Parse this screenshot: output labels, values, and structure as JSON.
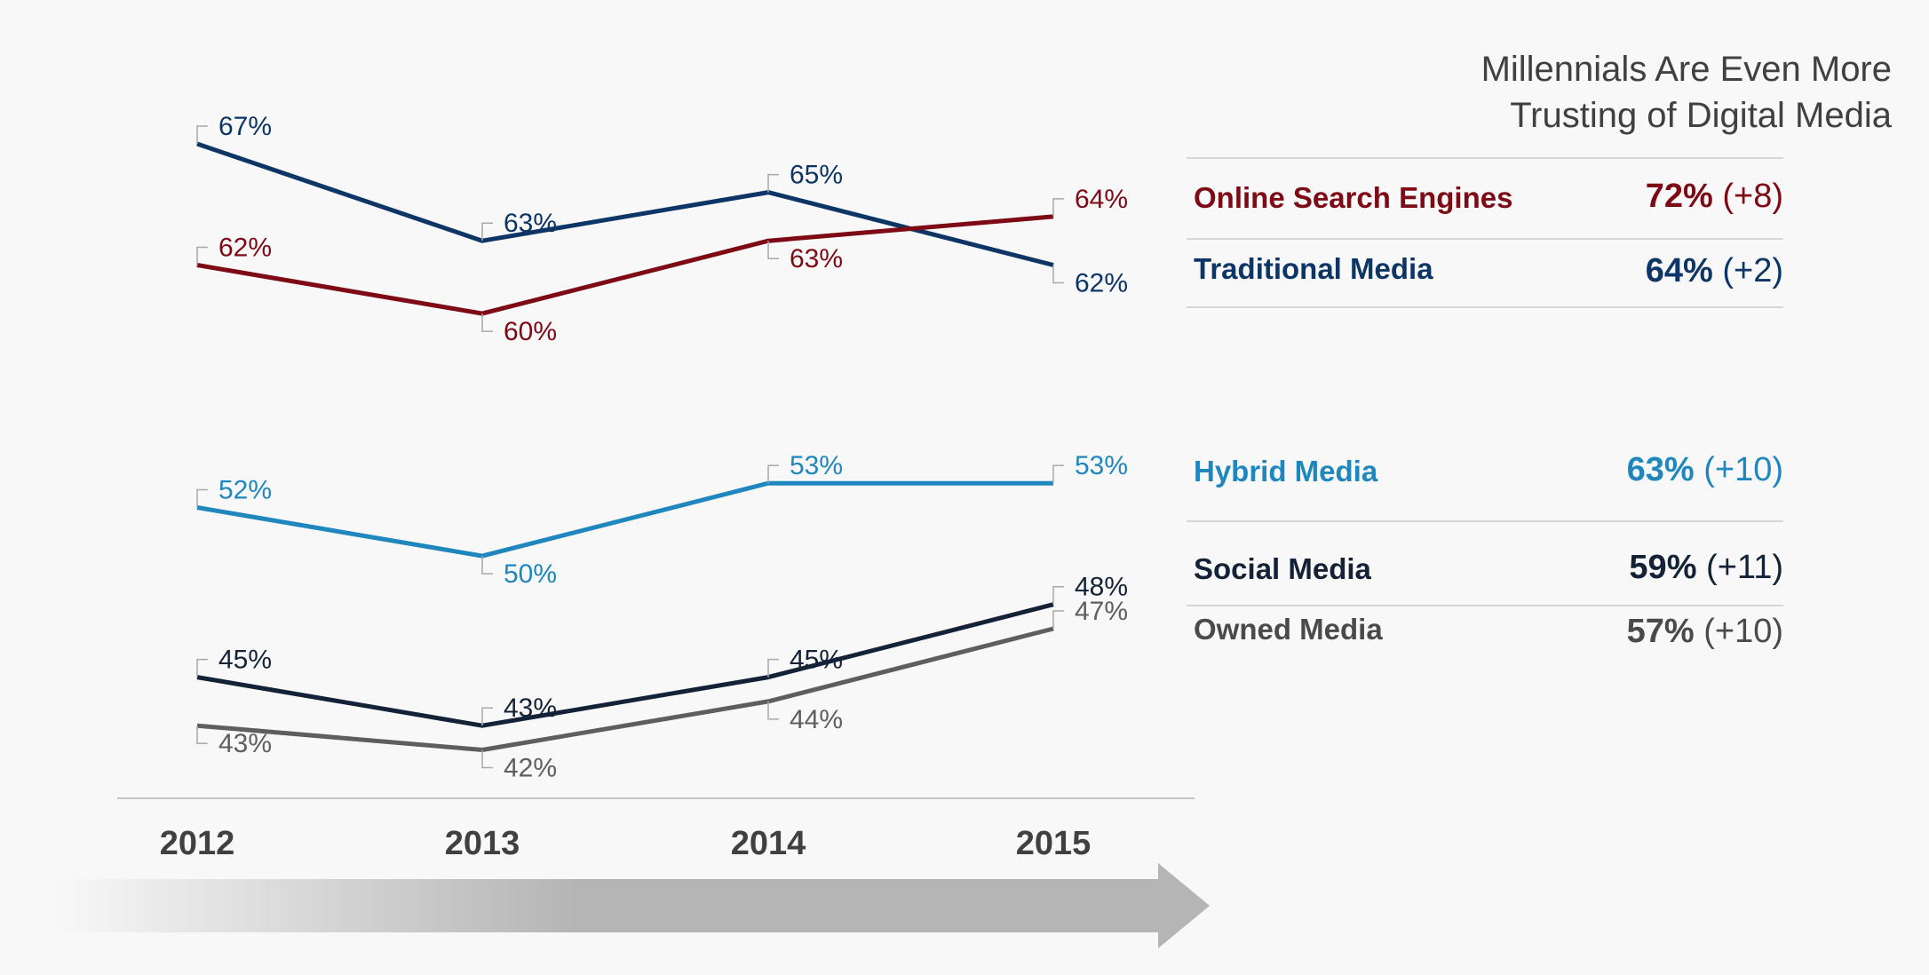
{
  "chart_data": {
    "type": "line",
    "x": [
      "2012",
      "2013",
      "2014",
      "2015"
    ],
    "series": [
      {
        "name": "Traditional Media",
        "color": "#0d3566",
        "values": [
          67,
          63,
          65,
          62
        ]
      },
      {
        "name": "Online Search Engines",
        "color": "#7d0a14",
        "values": [
          62,
          60,
          63,
          64
        ]
      },
      {
        "name": "Hybrid Media",
        "color": "#1f87bd",
        "values": [
          52,
          50,
          53,
          53
        ]
      },
      {
        "name": "Social Media",
        "color": "#142238",
        "values": [
          45,
          43,
          45,
          48
        ]
      },
      {
        "name": "Owned Media",
        "color": "#5e5e5e",
        "values": [
          43,
          42,
          44,
          47
        ]
      }
    ],
    "value_suffix": "%",
    "grid": false
  },
  "sidebar": {
    "title": "Millennials Are Even More\nTrusting of Digital Media",
    "items": [
      {
        "label": "Online Search Engines",
        "value": "72%",
        "change": "(+8)",
        "color": "#7d0a14"
      },
      {
        "label": "Traditional Media",
        "value": "64%",
        "change": "(+2)",
        "color": "#0d3566"
      },
      {
        "label": "Hybrid Media",
        "value": "63%",
        "change": "(+10)",
        "color": "#1f87bd"
      },
      {
        "label": "Social Media",
        "value": "59%",
        "change": "(+11)",
        "color": "#142238"
      },
      {
        "label": "Owned Media",
        "value": "57%",
        "change": "(+10)",
        "color": "#4a4a4a"
      }
    ]
  }
}
